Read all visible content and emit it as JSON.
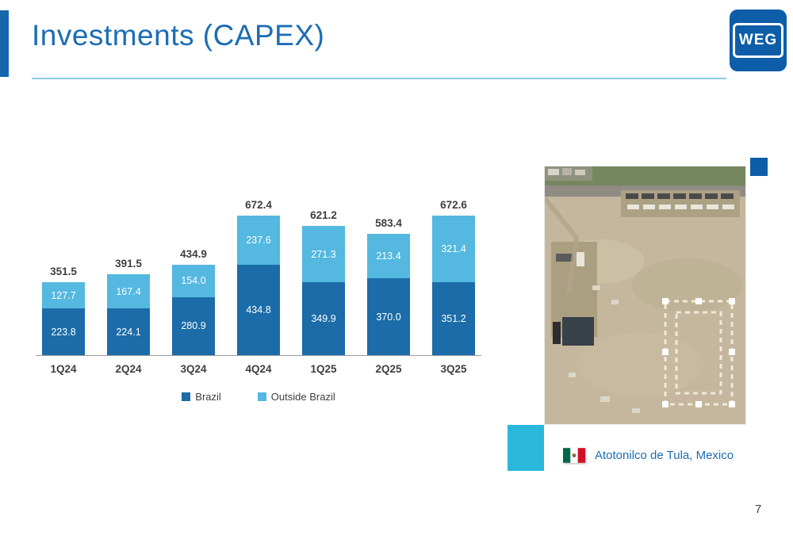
{
  "slide": {
    "title": "Investments (CAPEX)",
    "page_number": "7"
  },
  "logo": {
    "text": "WEG",
    "color": "#0d5da9"
  },
  "chart_data": {
    "type": "bar",
    "stacked": true,
    "title": "",
    "xlabel": "",
    "ylabel": "",
    "categories": [
      "1Q24",
      "2Q24",
      "3Q24",
      "4Q24",
      "1Q25",
      "2Q25",
      "3Q25"
    ],
    "series": [
      {
        "name": "Brazil",
        "color": "#1b6ca8",
        "values": [
          223.8,
          224.1,
          280.9,
          434.8,
          349.9,
          370.0,
          351.2
        ]
      },
      {
        "name": "Outside Brazil",
        "color": "#54b8e0",
        "values": [
          127.7,
          167.4,
          154.0,
          237.6,
          271.3,
          213.4,
          321.4
        ]
      }
    ],
    "totals": [
      351.5,
      391.5,
      434.9,
      672.4,
      621.2,
      583.4,
      672.6
    ],
    "ylim": [
      0,
      700
    ],
    "grid": false,
    "legend_position": "bottom"
  },
  "photo": {
    "caption": "Atotonilco de Tula, Mexico",
    "flag": "mexico-flag",
    "description": "aerial-construction-site"
  },
  "accents": {
    "cyan": "#29b7dc",
    "blue": "#0d5da9",
    "title_blue": "#1b6db5"
  }
}
